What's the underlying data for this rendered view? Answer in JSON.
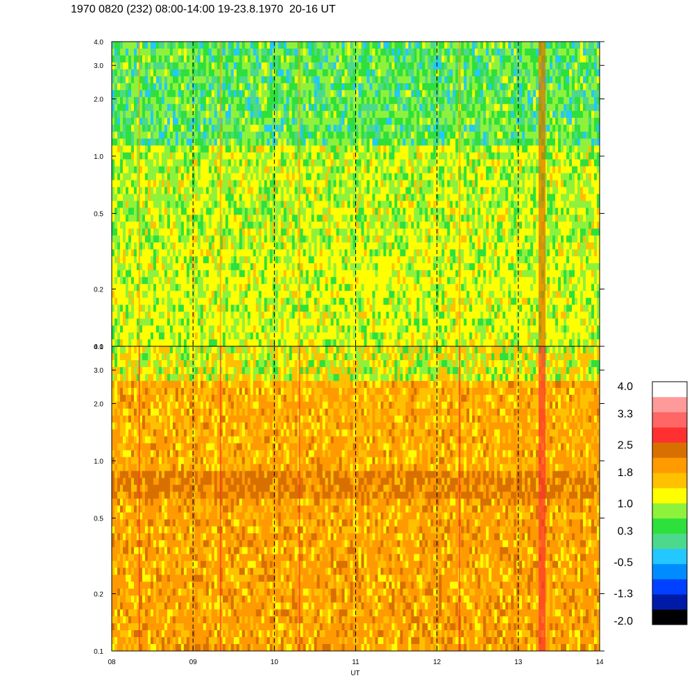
{
  "title": "1970 0820 (232) 08:00-14:00 19-23.8.1970  20-16 UT",
  "colors": {
    "frame": "#000000",
    "scale": [
      "#000000",
      "#001aa8",
      "#0040ff",
      "#008cff",
      "#22c8ff",
      "#4cd98c",
      "#2ee03c",
      "#8ef23c",
      "#ffff00",
      "#ffc000",
      "#ff9a00",
      "#d87000",
      "#ff3030",
      "#ff6666",
      "#ff9a9a",
      "#ffffff"
    ]
  },
  "chart_data": [
    {
      "type": "heatmap",
      "panel": "upper",
      "x_range": [
        8,
        14
      ],
      "y_range": [
        0.1,
        4.0
      ],
      "y_scale": "log",
      "x_ticks": [
        "08",
        "09",
        "10",
        "11",
        "12",
        "13",
        "14"
      ],
      "y_ticks": [
        {
          "v": 0.1,
          "label": "0.1"
        },
        {
          "v": 0.2,
          "label": "0.2"
        },
        {
          "v": 0.5,
          "label": "0.5"
        },
        {
          "v": 1.0,
          "label": "1.0"
        },
        {
          "v": 2.0,
          "label": "2.0"
        },
        {
          "v": 3.0,
          "label": "3.0"
        },
        {
          "v": 4.0,
          "label": "4.0"
        }
      ],
      "hour_markers": [
        9,
        10,
        11,
        12,
        13
      ],
      "dominant_colors": {
        "low": "yellow-green",
        "mid": "green",
        "high": "green-cyan"
      }
    },
    {
      "type": "heatmap",
      "panel": "lower",
      "x_range": [
        8,
        14
      ],
      "y_range": [
        0.1,
        4.0
      ],
      "y_scale": "log",
      "x_ticks": [
        "08",
        "09",
        "10",
        "11",
        "12",
        "13",
        "14"
      ],
      "xlabel": "UT",
      "y_ticks": [
        {
          "v": 0.1,
          "label": "0.1"
        },
        {
          "v": 0.2,
          "label": "0.2"
        },
        {
          "v": 0.5,
          "label": "0.5"
        },
        {
          "v": 1.0,
          "label": "1.0"
        },
        {
          "v": 2.0,
          "label": "2.0"
        },
        {
          "v": 3.0,
          "label": "3.0"
        },
        {
          "v": 4.0,
          "label": "4.0"
        }
      ],
      "hour_markers": [
        9,
        10,
        11,
        12,
        13
      ],
      "dominant_colors": {
        "low": "orange",
        "mid": "dark orange",
        "high": "orange-yellow"
      }
    },
    {
      "type": "colorbar",
      "labels": [
        "4.0",
        "3.3",
        "2.5",
        "1.8",
        "1.0",
        "0.3",
        "-0.5",
        "-1.3",
        "-2.0"
      ],
      "range": [
        -2.0,
        4.0
      ]
    }
  ]
}
